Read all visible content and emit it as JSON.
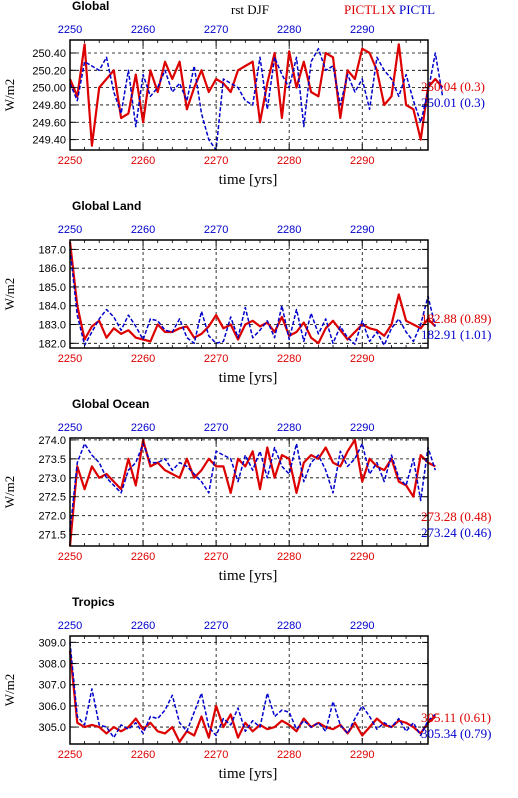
{
  "header": {
    "center_text": "rst  DJF",
    "legend": [
      {
        "label": "PICTL1X",
        "color": "#dd0000"
      },
      {
        "label": "PICTL",
        "color": "#0000cc"
      }
    ]
  },
  "colors": {
    "red": "#dd0000",
    "blue": "#0000cc",
    "black": "#000000"
  },
  "chart_data": [
    {
      "type": "line",
      "title": "Global",
      "xlabel": "time [yrs]",
      "ylabel": "W/m2",
      "xlim": [
        2250,
        2299
      ],
      "ylim": [
        249.28,
        250.55
      ],
      "yticks": [
        "249.40",
        "249.60",
        "249.80",
        "250.00",
        "250.20",
        "250.40"
      ],
      "xticks": [
        "2250",
        "2260",
        "2270",
        "2280",
        "2290"
      ],
      "grid": true,
      "top_axis_color": "blue",
      "bottom_axis_color": "red",
      "summary": [
        {
          "text": "250.04 (0.3)",
          "color": "red"
        },
        {
          "text": "250.01 (0.3)",
          "color": "blue"
        }
      ],
      "series": [
        {
          "name": "PICTL1X",
          "color": "red",
          "style": "solid",
          "values": [
            250.1,
            249.9,
            250.5,
            249.33,
            250.0,
            250.1,
            250.2,
            249.65,
            249.7,
            250.15,
            249.6,
            250.2,
            249.95,
            250.3,
            250.1,
            250.3,
            249.75,
            250.0,
            250.2,
            249.95,
            250.1,
            250.05,
            249.95,
            250.2,
            250.25,
            250.3,
            249.6,
            250.05,
            250.4,
            249.65,
            250.42,
            250.0,
            250.3,
            249.95,
            249.9,
            250.4,
            250.35,
            249.65,
            250.2,
            250.1,
            250.45,
            250.4,
            250.2,
            249.8,
            249.9,
            250.5,
            249.8,
            249.75,
            249.4,
            250.0,
            250.1,
            250.0
          ]
        },
        {
          "name": "PICTL",
          "color": "blue",
          "style": "dashed",
          "values": [
            250.05,
            249.85,
            250.3,
            250.25,
            250.2,
            250.35,
            249.95,
            249.7,
            250.2,
            249.55,
            250.15,
            249.9,
            250.0,
            250.2,
            249.95,
            250.05,
            249.85,
            250.25,
            249.7,
            249.4,
            249.28,
            250.1,
            250.05,
            250.0,
            249.85,
            249.8,
            250.35,
            249.75,
            250.35,
            250.15,
            250.0,
            250.35,
            249.55,
            250.3,
            250.45,
            250.2,
            250.25,
            249.8,
            250.15,
            249.95,
            250.1,
            249.75,
            250.35,
            250.2,
            250.1,
            249.9,
            250.15,
            249.85,
            249.6,
            249.95,
            250.4,
            249.9
          ]
        }
      ]
    },
    {
      "type": "line",
      "title": "Global Land",
      "xlabel": "time [yrs]",
      "ylabel": "W/m2",
      "xlim": [
        2250,
        2299
      ],
      "ylim": [
        181.75,
        187.5
      ],
      "yticks": [
        "182.0",
        "183.0",
        "184.0",
        "185.0",
        "186.0",
        "187.0"
      ],
      "xticks": [
        "2250",
        "2260",
        "2270",
        "2280",
        "2290"
      ],
      "grid": true,
      "top_axis_color": "blue",
      "bottom_axis_color": "red",
      "summary": [
        {
          "text": "182.88 (0.89)",
          "color": "red"
        },
        {
          "text": "182.91 (1.01)",
          "color": "blue"
        }
      ],
      "series": [
        {
          "name": "PICTL1X",
          "color": "red",
          "style": "solid",
          "values": [
            187.4,
            184.0,
            182.2,
            182.9,
            183.2,
            182.3,
            182.8,
            182.5,
            182.7,
            182.3,
            182.2,
            182.1,
            183.0,
            182.6,
            182.6,
            182.8,
            182.9,
            182.3,
            182.5,
            182.9,
            183.5,
            182.8,
            183.0,
            182.2,
            183.0,
            183.2,
            182.9,
            183.1,
            182.6,
            183.4,
            182.4,
            182.6,
            183.1,
            182.3,
            182.0,
            182.8,
            183.2,
            182.7,
            182.2,
            182.6,
            183.0,
            182.8,
            182.7,
            182.4,
            183.0,
            184.6,
            183.2,
            183.0,
            182.8,
            183.3,
            182.9
          ]
        },
        {
          "name": "PICTL",
          "color": "blue",
          "style": "dashed",
          "values": [
            187.0,
            183.5,
            181.9,
            182.6,
            183.3,
            183.8,
            183.4,
            182.7,
            183.5,
            182.9,
            182.2,
            183.3,
            183.2,
            182.7,
            182.6,
            183.3,
            182.3,
            182.0,
            183.7,
            182.4,
            182.0,
            182.1,
            183.4,
            182.3,
            183.9,
            182.3,
            182.7,
            183.2,
            182.3,
            184.0,
            182.2,
            183.8,
            182.1,
            183.6,
            182.5,
            183.3,
            182.0,
            182.9,
            182.3,
            181.95,
            183.2,
            182.1,
            182.6,
            181.9,
            182.8,
            183.3,
            182.6,
            182.1,
            183.0,
            184.5,
            182.9
          ]
        }
      ]
    },
    {
      "type": "line",
      "title": "Global Ocean",
      "xlabel": "time [yrs]",
      "ylabel": "W/m2",
      "xlim": [
        2250,
        2299
      ],
      "ylim": [
        271.2,
        274.05
      ],
      "yticks": [
        "271.5",
        "272.0",
        "272.5",
        "273.0",
        "273.5",
        "274.0"
      ],
      "xticks": [
        "2250",
        "2260",
        "2270",
        "2280",
        "2290"
      ],
      "grid": true,
      "top_axis_color": "blue",
      "bottom_axis_color": "red",
      "summary": [
        {
          "text": "273.28 (0.48)",
          "color": "red"
        },
        {
          "text": "273.24 (0.46)",
          "color": "blue"
        }
      ],
      "series": [
        {
          "name": "PICTL1X",
          "color": "red",
          "style": "solid",
          "values": [
            271.2,
            273.3,
            272.7,
            273.3,
            273.0,
            273.1,
            272.9,
            272.7,
            273.5,
            272.8,
            274.0,
            273.3,
            273.4,
            273.2,
            273.1,
            273.0,
            273.5,
            273.0,
            273.2,
            273.5,
            273.3,
            273.3,
            272.6,
            273.5,
            273.3,
            273.7,
            272.7,
            273.8,
            273.0,
            273.6,
            273.5,
            272.6,
            273.4,
            273.6,
            273.5,
            273.8,
            273.4,
            273.3,
            273.7,
            274.0,
            272.9,
            273.5,
            273.3,
            273.2,
            273.5,
            272.9,
            272.8,
            272.5,
            273.6,
            273.4,
            273.3
          ]
        },
        {
          "name": "PICTL",
          "color": "blue",
          "style": "dashed",
          "values": [
            271.6,
            273.4,
            273.9,
            273.6,
            273.4,
            273.0,
            272.8,
            272.6,
            273.2,
            273.4,
            273.9,
            273.4,
            273.4,
            273.5,
            273.2,
            273.4,
            273.3,
            273.1,
            272.9,
            272.6,
            273.7,
            273.6,
            273.5,
            272.9,
            273.6,
            273.2,
            273.7,
            273.0,
            273.8,
            273.3,
            273.1,
            273.9,
            272.9,
            273.4,
            273.6,
            273.2,
            272.6,
            273.7,
            273.3,
            273.5,
            273.9,
            273.1,
            273.4,
            272.9,
            273.6,
            273.0,
            272.8,
            273.5,
            272.4,
            273.8,
            273.2
          ]
        }
      ]
    },
    {
      "type": "line",
      "title": "Tropics",
      "xlabel": "time [yrs]",
      "ylabel": "W/m2",
      "xlim": [
        2250,
        2299
      ],
      "ylim": [
        304.2,
        309.3
      ],
      "yticks": [
        "305.0",
        "306.0",
        "307.0",
        "308.0",
        "309.0"
      ],
      "xticks": [
        "2250",
        "2260",
        "2270",
        "2280",
        "2290"
      ],
      "grid": true,
      "top_axis_color": "blue",
      "bottom_axis_color": "red",
      "summary": [
        {
          "text": "305.11 (0.61)",
          "color": "red"
        },
        {
          "text": "305.34 (0.79)",
          "color": "blue"
        }
      ],
      "series": [
        {
          "name": "PICTL1X",
          "color": "red",
          "style": "solid",
          "values": [
            308.6,
            305.2,
            305.0,
            305.1,
            305.0,
            304.7,
            305.0,
            304.8,
            305.0,
            305.4,
            304.9,
            305.2,
            304.8,
            304.7,
            305.0,
            304.3,
            304.8,
            304.6,
            305.5,
            304.5,
            306.0,
            305.0,
            305.6,
            304.5,
            305.2,
            304.8,
            305.1,
            304.9,
            305.0,
            305.3,
            305.1,
            304.8,
            305.4,
            305.0,
            305.2,
            305.0,
            304.9,
            305.1,
            304.7,
            305.2,
            304.6,
            305.0,
            305.4,
            305.1,
            305.0,
            305.3,
            305.2,
            305.0,
            304.7,
            305.2,
            305.5
          ]
        },
        {
          "name": "PICTL",
          "color": "blue",
          "style": "dashed",
          "values": [
            309.0,
            305.5,
            305.1,
            306.8,
            305.1,
            305.0,
            304.5,
            305.1,
            304.9,
            305.2,
            304.7,
            305.5,
            305.4,
            305.8,
            306.5,
            305.2,
            304.8,
            305.7,
            306.6,
            305.0,
            304.6,
            305.4,
            305.1,
            305.9,
            304.8,
            305.3,
            305.0,
            306.6,
            305.5,
            305.8,
            305.7,
            304.9,
            305.3,
            305.0,
            305.2,
            304.8,
            306.2,
            305.1,
            304.7,
            305.4,
            306.0,
            305.5,
            304.9,
            305.2,
            305.0,
            305.4,
            304.8,
            305.2,
            304.6,
            305.3,
            305.6
          ]
        }
      ]
    }
  ]
}
